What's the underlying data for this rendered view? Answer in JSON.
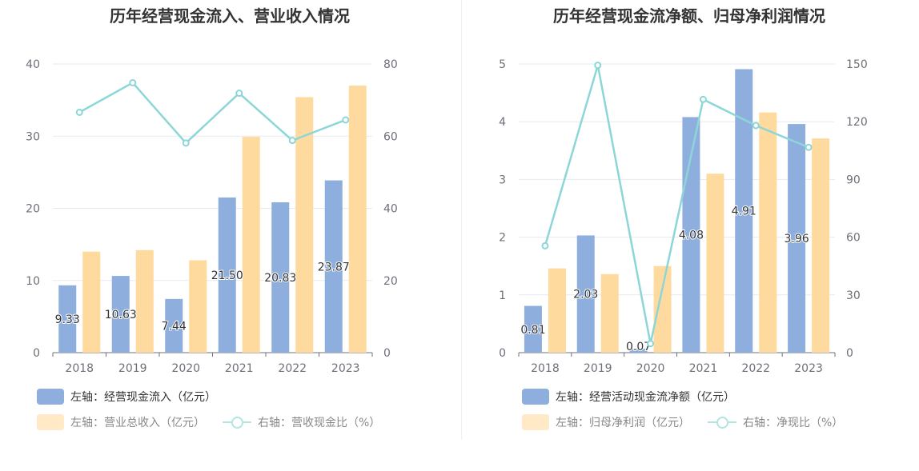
{
  "chart_data": [
    {
      "type": "bar",
      "title": "历年经营现金流入、营业收入情况",
      "categories": [
        "2018",
        "2019",
        "2020",
        "2021",
        "2022",
        "2023"
      ],
      "left_axis": {
        "min": 0,
        "max": 40,
        "ticks": [
          "0",
          "10",
          "20",
          "30",
          "40"
        ]
      },
      "right_axis": {
        "min": 0,
        "max": 80,
        "ticks": [
          "0",
          "20",
          "40",
          "60",
          "80"
        ]
      },
      "grid": true,
      "series": [
        {
          "name": "左轴：经营现金流入（亿元）",
          "type": "bar",
          "axis": "left",
          "color": "#8eaedd",
          "values": [
            9.33,
            10.63,
            7.44,
            21.5,
            20.83,
            23.87
          ],
          "labels": [
            "9.33",
            "10.63",
            "7.44",
            "21.50",
            "20.83",
            "23.87"
          ]
        },
        {
          "name": "左轴：营业总收入（亿元）",
          "type": "bar",
          "axis": "left",
          "color": "#ffda9e",
          "values": [
            14.0,
            14.2,
            12.8,
            29.9,
            35.4,
            37.0
          ]
        },
        {
          "name": "右轴：营收现金比（%）",
          "type": "line",
          "axis": "right",
          "color": "#8dd6d8",
          "values": [
            66.6,
            74.8,
            58.1,
            71.9,
            58.8,
            64.5
          ]
        }
      ],
      "legend_position": "bottom-left"
    },
    {
      "type": "bar",
      "title": "历年经营现金流净额、归母净利润情况",
      "categories": [
        "2018",
        "2019",
        "2020",
        "2021",
        "2022",
        "2023"
      ],
      "left_axis": {
        "min": 0,
        "max": 5,
        "ticks": [
          "0",
          "1",
          "2",
          "3",
          "4",
          "5"
        ]
      },
      "right_axis": {
        "min": 0,
        "max": 150,
        "ticks": [
          "0",
          "30",
          "60",
          "90",
          "120",
          "150"
        ]
      },
      "grid": true,
      "series": [
        {
          "name": "左轴：经营活动现金流净额（亿元）",
          "type": "bar",
          "axis": "left",
          "color": "#8eaedd",
          "values": [
            0.81,
            2.03,
            0.07,
            4.08,
            4.91,
            3.96
          ],
          "labels": [
            "0.81",
            "2.03",
            "0.07",
            "4.08",
            "4.91",
            "3.96"
          ]
        },
        {
          "name": "左轴：归母净利润（亿元）",
          "type": "bar",
          "axis": "left",
          "color": "#ffda9e",
          "values": [
            1.46,
            1.36,
            1.5,
            3.1,
            4.16,
            3.71
          ]
        },
        {
          "name": "右轴：净现比（%）",
          "type": "line",
          "axis": "right",
          "color": "#8dd6d8",
          "values": [
            55.5,
            149.3,
            4.7,
            131.6,
            118.0,
            106.7
          ]
        }
      ],
      "legend_position": "bottom-left"
    }
  ]
}
